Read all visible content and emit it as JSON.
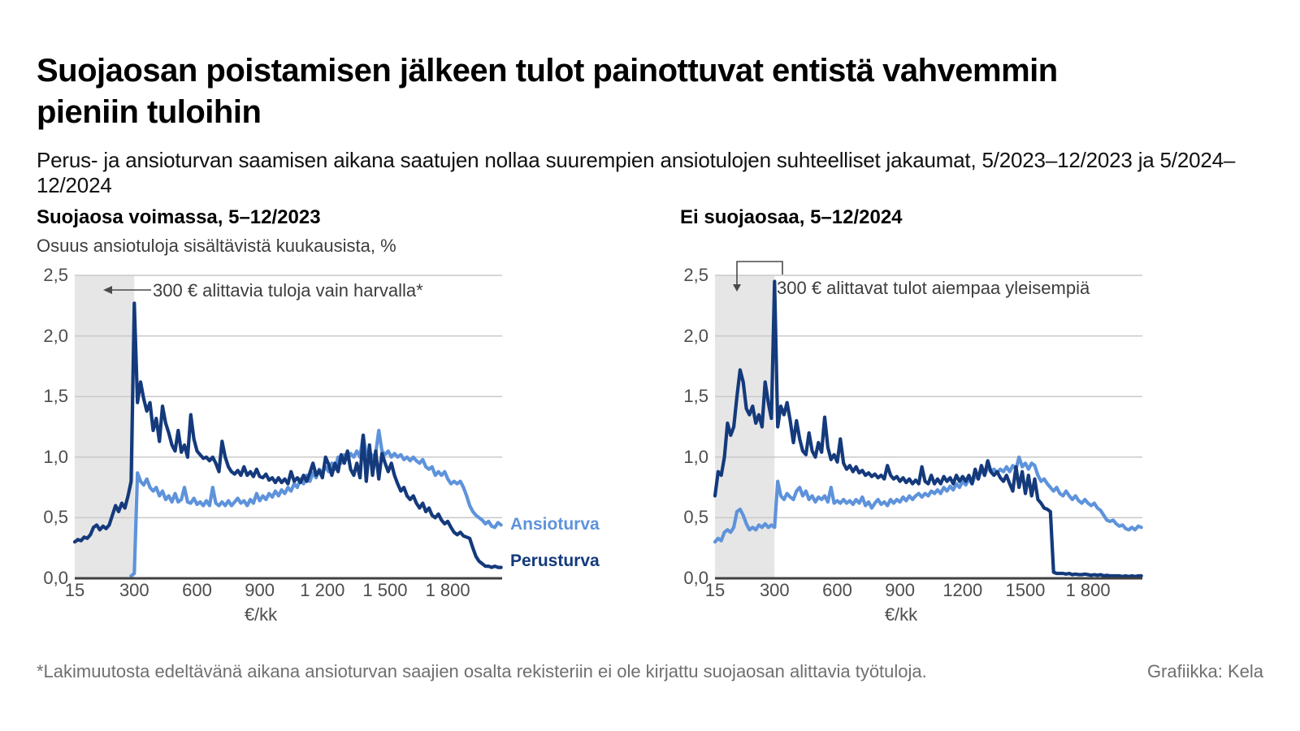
{
  "header": {
    "title_line1": "Suojaosan poistamisen jälkeen tulot painottuvat entistä vahvemmin",
    "title_line2": "pieniin tuloihin",
    "subtitle": "Perus- ja ansioturvan saamisen aikana saatujen nollaa suurempien ansiotulojen suhteelliset jakaumat,  5/2023–12/2023 ja 5/2024–12/2024"
  },
  "footer": {
    "footnote": "*Lakimuutosta edeltävänä aikana ansioturvan saajien osalta rekisteriin ei ole kirjattu suojaosan alittavia työtuloja.",
    "credit": "Grafiikka: Kela"
  },
  "colors": {
    "perusturva": "#143a7c",
    "ansioturva": "#5e93db",
    "shade": "#e6e6e6",
    "grid": "#c9c9c9",
    "axis": "#404040",
    "annotation": "#4a4a4a",
    "tick_text": "#4d4d4d",
    "footer_text": "#6f6f6f"
  },
  "chart_data": [
    {
      "type": "line",
      "title": "Suojaosa voimassa, 5–12/2023",
      "ylabel": "Osuus ansiotuloja sisältävistä kuukausista, %",
      "xlabel": "€/kk",
      "annotation": "300 € alittavia tuloja vain harvalla*",
      "x_range": [
        15,
        2060
      ],
      "y_range": [
        0,
        2.5
      ],
      "shaded_region": [
        15,
        300
      ],
      "grid": true,
      "y_tick_step": 0.5,
      "y_ticks": [
        "0,0",
        "0,5",
        "1,0",
        "1,5",
        "2,0",
        "2,5"
      ],
      "x_ticks": [
        {
          "v": 15,
          "label": "15"
        },
        {
          "v": 300,
          "label": "300"
        },
        {
          "v": 600,
          "label": "600"
        },
        {
          "v": 900,
          "label": "900"
        },
        {
          "v": 1200,
          "label": "1 200"
        },
        {
          "v": 1500,
          "label": "1 500"
        },
        {
          "v": 1800,
          "label": "1 800"
        }
      ],
      "legend_position": "end-of-line-labels",
      "series": [
        {
          "name": "Ansioturva",
          "color": "#5e93db",
          "x_start": 285,
          "x_step": 15,
          "values": [
            0.02,
            0.04,
            0.87,
            0.8,
            0.77,
            0.82,
            0.75,
            0.72,
            0.75,
            0.68,
            0.72,
            0.65,
            0.68,
            0.63,
            0.7,
            0.63,
            0.65,
            0.75,
            0.63,
            0.62,
            0.66,
            0.61,
            0.63,
            0.6,
            0.64,
            0.6,
            0.75,
            0.62,
            0.6,
            0.63,
            0.6,
            0.64,
            0.6,
            0.63,
            0.66,
            0.62,
            0.64,
            0.6,
            0.65,
            0.62,
            0.7,
            0.64,
            0.68,
            0.65,
            0.7,
            0.67,
            0.72,
            0.68,
            0.73,
            0.7,
            0.75,
            0.72,
            0.78,
            0.75,
            0.82,
            0.78,
            0.85,
            0.8,
            0.87,
            0.83,
            0.9,
            0.87,
            0.92,
            0.88,
            0.95,
            0.9,
            1.0,
            0.95,
            1.02,
            0.98,
            1.03,
            1.0,
            1.05,
            1.0,
            1.18,
            1.02,
            1.05,
            1.0,
            1.03,
            1.22,
            1.05,
            1.02,
            1.05,
            1.0,
            1.03,
            1.0,
            1.02,
            0.98,
            1.0,
            0.97,
            1.0,
            0.97,
            0.95,
            0.98,
            0.92,
            0.9,
            0.92,
            0.85,
            0.88,
            0.85,
            0.88,
            0.82,
            0.78,
            0.8,
            0.78,
            0.8,
            0.75,
            0.68,
            0.6,
            0.55,
            0.52,
            0.5,
            0.48,
            0.45,
            0.47,
            0.43,
            0.42,
            0.46,
            0.44
          ]
        },
        {
          "name": "Perusturva",
          "color": "#143a7c",
          "x_start": 15,
          "x_step": 15,
          "values": [
            0.3,
            0.32,
            0.31,
            0.34,
            0.33,
            0.36,
            0.42,
            0.44,
            0.4,
            0.43,
            0.41,
            0.44,
            0.52,
            0.6,
            0.55,
            0.62,
            0.58,
            0.68,
            0.8,
            2.27,
            1.45,
            1.62,
            1.48,
            1.38,
            1.45,
            1.22,
            1.32,
            1.13,
            1.42,
            1.28,
            1.2,
            1.1,
            1.05,
            1.22,
            1.04,
            1.1,
            1.0,
            1.35,
            1.15,
            1.05,
            1.02,
            0.99,
            1.0,
            0.97,
            1.0,
            0.95,
            0.88,
            1.13,
            1.0,
            0.92,
            0.88,
            0.86,
            0.89,
            0.85,
            0.92,
            0.85,
            0.88,
            0.84,
            0.9,
            0.84,
            0.83,
            0.86,
            0.81,
            0.83,
            0.79,
            0.83,
            0.79,
            0.82,
            0.78,
            0.88,
            0.8,
            0.83,
            0.79,
            0.85,
            0.8,
            0.87,
            0.95,
            0.85,
            0.89,
            0.83,
            1.0,
            0.94,
            0.85,
            0.95,
            0.88,
            1.02,
            0.95,
            1.05,
            0.9,
            0.85,
            0.95,
            0.83,
            1.18,
            0.8,
            1.1,
            0.85,
            1.05,
            0.82,
            1.03,
            0.95,
            0.88,
            0.95,
            0.85,
            0.78,
            0.72,
            0.75,
            0.68,
            0.65,
            0.68,
            0.62,
            0.58,
            0.62,
            0.55,
            0.58,
            0.52,
            0.5,
            0.53,
            0.48,
            0.45,
            0.47,
            0.42,
            0.38,
            0.36,
            0.38,
            0.35,
            0.34,
            0.33,
            0.25,
            0.18,
            0.14,
            0.12,
            0.1,
            0.1,
            0.09,
            0.1,
            0.09,
            0.09
          ]
        }
      ]
    },
    {
      "type": "line",
      "title": "Ei suojaosaa, 5–12/2024",
      "ylabel": "",
      "xlabel": "€/kk",
      "annotation": "300 € alittavat tulot aiempaa yleisempiä",
      "x_range": [
        15,
        2060
      ],
      "y_range": [
        0,
        2.5
      ],
      "shaded_region": [
        15,
        300
      ],
      "grid": true,
      "y_tick_step": 0.5,
      "y_ticks": [
        "0,0",
        "0,5",
        "1,0",
        "1,5",
        "2,0",
        "2,5"
      ],
      "x_ticks": [
        {
          "v": 15,
          "label": "15"
        },
        {
          "v": 300,
          "label": "300"
        },
        {
          "v": 600,
          "label": "600"
        },
        {
          "v": 900,
          "label": "900"
        },
        {
          "v": 1200,
          "label": "1200"
        },
        {
          "v": 1500,
          "label": "1500"
        },
        {
          "v": 1800,
          "label": "1 800"
        }
      ],
      "legend_position": "none",
      "series": [
        {
          "name": "Ansioturva",
          "color": "#5e93db",
          "x_start": 15,
          "x_step": 15,
          "values": [
            0.3,
            0.33,
            0.31,
            0.38,
            0.4,
            0.38,
            0.42,
            0.55,
            0.57,
            0.52,
            0.45,
            0.4,
            0.42,
            0.4,
            0.44,
            0.42,
            0.45,
            0.42,
            0.44,
            0.42,
            0.8,
            0.68,
            0.65,
            0.7,
            0.67,
            0.65,
            0.72,
            0.75,
            0.68,
            0.72,
            0.65,
            0.68,
            0.63,
            0.67,
            0.65,
            0.68,
            0.63,
            0.75,
            0.62,
            0.64,
            0.62,
            0.65,
            0.62,
            0.64,
            0.61,
            0.65,
            0.62,
            0.67,
            0.6,
            0.63,
            0.58,
            0.62,
            0.65,
            0.61,
            0.63,
            0.6,
            0.65,
            0.62,
            0.65,
            0.63,
            0.67,
            0.64,
            0.68,
            0.65,
            0.68,
            0.7,
            0.67,
            0.7,
            0.68,
            0.72,
            0.7,
            0.73,
            0.7,
            0.75,
            0.72,
            0.76,
            0.73,
            0.78,
            0.75,
            0.8,
            0.77,
            0.82,
            0.78,
            0.85,
            0.82,
            0.9,
            0.85,
            0.92,
            0.88,
            0.9,
            0.87,
            0.9,
            0.88,
            0.92,
            0.88,
            0.93,
            0.9,
            1.0,
            0.92,
            0.95,
            0.9,
            0.95,
            0.93,
            0.85,
            0.8,
            0.82,
            0.78,
            0.75,
            0.72,
            0.75,
            0.7,
            0.68,
            0.72,
            0.68,
            0.65,
            0.68,
            0.64,
            0.62,
            0.65,
            0.62,
            0.6,
            0.62,
            0.58,
            0.56,
            0.52,
            0.48,
            0.47,
            0.48,
            0.45,
            0.43,
            0.44,
            0.41,
            0.4,
            0.42,
            0.4,
            0.43,
            0.42
          ]
        },
        {
          "name": "Perusturva",
          "color": "#143a7c",
          "x_start": 15,
          "x_step": 15,
          "values": [
            0.68,
            0.88,
            0.85,
            1.0,
            1.28,
            1.18,
            1.25,
            1.5,
            1.72,
            1.62,
            1.4,
            1.35,
            1.42,
            1.28,
            1.35,
            1.25,
            1.62,
            1.45,
            1.32,
            2.45,
            1.25,
            1.42,
            1.35,
            1.45,
            1.3,
            1.12,
            1.3,
            1.15,
            1.05,
            1.02,
            1.2,
            1.05,
            1.0,
            1.12,
            1.04,
            1.33,
            1.08,
            0.98,
            1.02,
            0.96,
            1.15,
            0.95,
            0.9,
            0.93,
            0.88,
            0.92,
            0.87,
            0.89,
            0.85,
            0.87,
            0.84,
            0.86,
            0.83,
            0.85,
            0.82,
            0.93,
            0.85,
            0.82,
            0.84,
            0.8,
            0.83,
            0.79,
            0.82,
            0.78,
            0.81,
            0.78,
            0.92,
            0.8,
            0.78,
            0.85,
            0.78,
            0.82,
            0.78,
            0.84,
            0.8,
            0.83,
            0.78,
            0.85,
            0.8,
            0.84,
            0.8,
            0.85,
            0.78,
            0.9,
            0.82,
            0.93,
            0.85,
            0.97,
            0.88,
            0.85,
            0.88,
            0.83,
            0.8,
            0.85,
            0.78,
            0.72,
            0.92,
            0.75,
            0.88,
            0.7,
            0.85,
            0.68,
            0.82,
            0.65,
            0.62,
            0.58,
            0.57,
            0.55,
            0.05,
            0.04,
            0.04,
            0.04,
            0.035,
            0.04,
            0.03,
            0.035,
            0.03,
            0.03,
            0.035,
            0.03,
            0.025,
            0.03,
            0.025,
            0.03,
            0.02,
            0.025,
            0.02,
            0.02,
            0.02,
            0.02,
            0.015,
            0.02,
            0.015,
            0.02,
            0.015,
            0.02,
            0.02
          ]
        }
      ]
    }
  ]
}
